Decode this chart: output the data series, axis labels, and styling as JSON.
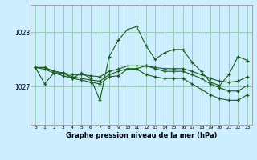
{
  "title": "Graphe pression niveau de la mer (hPa)",
  "background_color": "#cceeff",
  "grid_color": "#99ccbb",
  "line_color": "#1a5c1a",
  "xlim": [
    -0.5,
    23.5
  ],
  "ylim": [
    1026.3,
    1028.5
  ],
  "yticks": [
    1027,
    1028
  ],
  "xticks": [
    0,
    1,
    2,
    3,
    4,
    5,
    6,
    7,
    8,
    9,
    10,
    11,
    12,
    13,
    14,
    15,
    16,
    17,
    18,
    19,
    20,
    21,
    22,
    23
  ],
  "series": [
    {
      "x": [
        0,
        1,
        2,
        3,
        4,
        5,
        6,
        7,
        8,
        9,
        10,
        11,
        12,
        13,
        14,
        15,
        16,
        17,
        18,
        19,
        20,
        21,
        22,
        23
      ],
      "y": [
        1027.35,
        1027.05,
        1027.25,
        1027.25,
        1027.15,
        1027.25,
        1027.15,
        1026.75,
        1027.55,
        1027.85,
        1028.05,
        1028.1,
        1027.75,
        1027.5,
        1027.62,
        1027.68,
        1027.68,
        1027.45,
        1027.28,
        1027.08,
        1027.02,
        1027.22,
        1027.55,
        1027.48
      ]
    },
    {
      "x": [
        0,
        1,
        2,
        3,
        4,
        5,
        6,
        7,
        8,
        9,
        10,
        11,
        12,
        13,
        14,
        15,
        16,
        17,
        18,
        19,
        20,
        21,
        22,
        23
      ],
      "y": [
        1027.35,
        1027.35,
        1027.28,
        1027.25,
        1027.22,
        1027.22,
        1027.2,
        1027.18,
        1027.28,
        1027.32,
        1027.38,
        1027.38,
        1027.38,
        1027.35,
        1027.33,
        1027.33,
        1027.33,
        1027.28,
        1027.22,
        1027.15,
        1027.1,
        1027.08,
        1027.1,
        1027.18
      ]
    },
    {
      "x": [
        0,
        1,
        2,
        3,
        4,
        5,
        6,
        7,
        8,
        9,
        10,
        11,
        12,
        13,
        14,
        15,
        16,
        17,
        18,
        19,
        20,
        21,
        22,
        23
      ],
      "y": [
        1027.35,
        1027.35,
        1027.28,
        1027.25,
        1027.18,
        1027.15,
        1027.12,
        1027.1,
        1027.22,
        1027.28,
        1027.33,
        1027.33,
        1027.38,
        1027.33,
        1027.28,
        1027.28,
        1027.28,
        1027.22,
        1027.15,
        1027.05,
        1026.98,
        1026.92,
        1026.92,
        1027.02
      ]
    },
    {
      "x": [
        0,
        1,
        2,
        3,
        4,
        5,
        6,
        7,
        8,
        9,
        10,
        11,
        12,
        13,
        14,
        15,
        16,
        17,
        18,
        19,
        20,
        21,
        22,
        23
      ],
      "y": [
        1027.35,
        1027.32,
        1027.25,
        1027.2,
        1027.15,
        1027.12,
        1027.08,
        1027.05,
        1027.18,
        1027.2,
        1027.32,
        1027.32,
        1027.22,
        1027.18,
        1027.15,
        1027.15,
        1027.15,
        1027.05,
        1026.95,
        1026.85,
        1026.78,
        1026.75,
        1026.75,
        1026.85
      ]
    }
  ]
}
